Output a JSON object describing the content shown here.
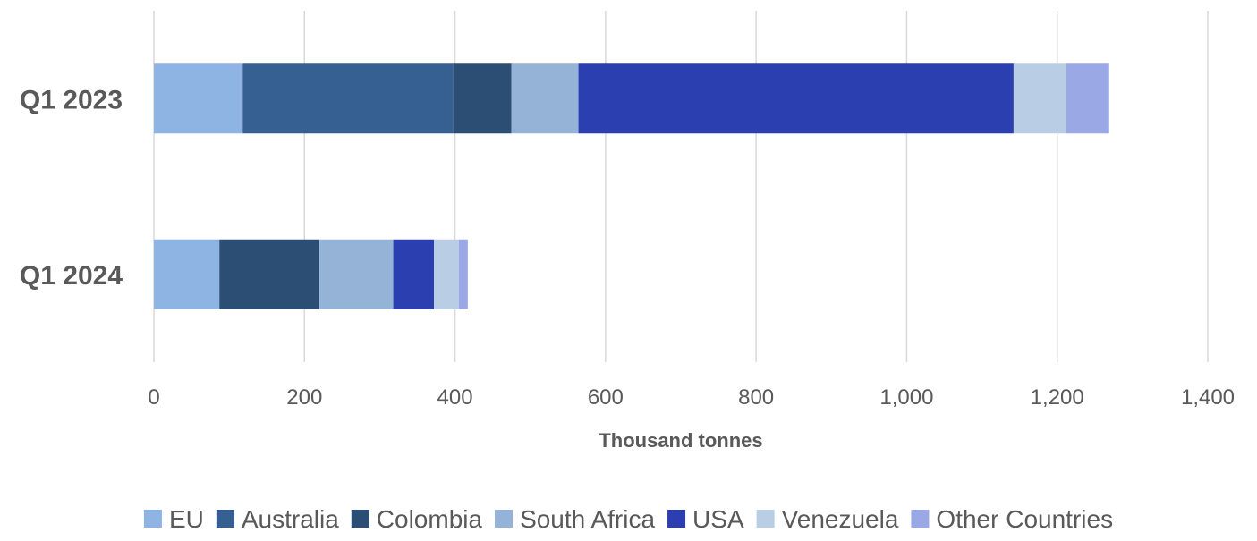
{
  "chart_data": {
    "type": "bar",
    "orientation": "horizontal",
    "stacked": true,
    "categories": [
      "Q1 2023",
      "Q1 2024"
    ],
    "series": [
      {
        "name": "EU",
        "values": [
          118,
          87
        ],
        "color": "#8EB4E3"
      },
      {
        "name": "Australia",
        "values": [
          280,
          0
        ],
        "color": "#376092"
      },
      {
        "name": "Colombia",
        "values": [
          77,
          133
        ],
        "color": "#2D4E74"
      },
      {
        "name": "South Africa",
        "values": [
          89,
          98
        ],
        "color": "#95B3D7"
      },
      {
        "name": "USA",
        "values": [
          578,
          54
        ],
        "color": "#2B3FB0"
      },
      {
        "name": "Venezuela",
        "values": [
          70,
          33
        ],
        "color": "#B9CDE5"
      },
      {
        "name": "Other Countries",
        "values": [
          57,
          12
        ],
        "color": "#9BA8E6"
      }
    ],
    "xlabel": "Thousand tonnes",
    "xlim": [
      0,
      1400
    ],
    "xticks": [
      0,
      200,
      400,
      600,
      800,
      1000,
      1200,
      1400
    ],
    "xtick_labels": [
      "0",
      "200",
      "400",
      "600",
      "800",
      "1,000",
      "1,200",
      "1,400"
    ],
    "grid": "vertical",
    "legend_position": "bottom"
  }
}
